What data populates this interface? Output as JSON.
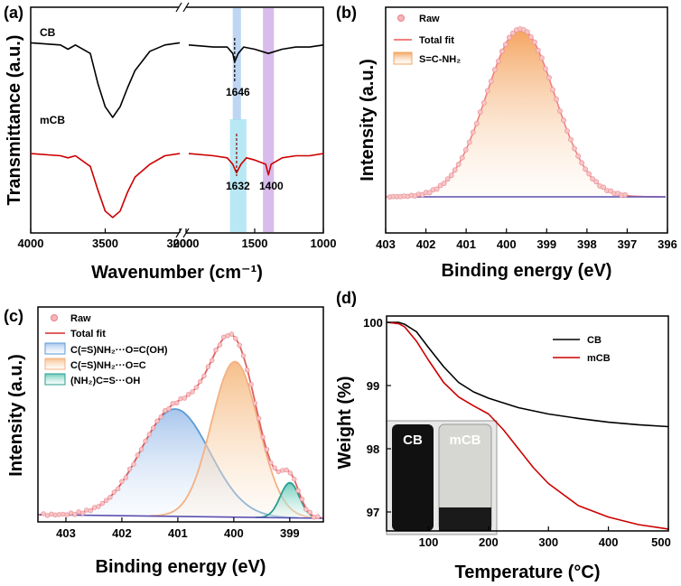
{
  "figure": {
    "panel_labels": [
      "(a)",
      "(b)",
      "(c)",
      "(d)"
    ]
  },
  "chart_data": [
    {
      "id": "a",
      "type": "line",
      "title": "",
      "xlabel": "Wavenumber (cm⁻¹)",
      "ylabel": "Transmittance (a.u.)",
      "xlim": [
        4000,
        1000
      ],
      "x_break": [
        3000,
        2000
      ],
      "xticks": [
        "4000",
        "3500",
        "3000",
        "2000",
        "1500",
        "1000"
      ],
      "series": [
        {
          "name": "CB",
          "color": "#000000",
          "x": [
            4000,
            3800,
            3750,
            3700,
            3600,
            3550,
            3500,
            3450,
            3400,
            3350,
            3300,
            3200,
            3100,
            3000,
            1980,
            1800,
            1700,
            1660,
            1646,
            1620,
            1580,
            1500,
            1400,
            1300,
            1200,
            1100,
            1000
          ],
          "y": [
            0.85,
            0.84,
            0.82,
            0.84,
            0.8,
            0.66,
            0.55,
            0.5,
            0.55,
            0.64,
            0.72,
            0.81,
            0.84,
            0.85,
            0.84,
            0.83,
            0.83,
            0.8,
            0.76,
            0.8,
            0.83,
            0.82,
            0.8,
            0.82,
            0.83,
            0.83,
            0.84
          ]
        },
        {
          "name": "mCB",
          "color": "#cc0000",
          "x": [
            4000,
            3800,
            3750,
            3700,
            3600,
            3550,
            3500,
            3450,
            3400,
            3350,
            3300,
            3200,
            3100,
            3000,
            1980,
            1800,
            1700,
            1660,
            1632,
            1600,
            1560,
            1500,
            1420,
            1400,
            1380,
            1300,
            1200,
            1100,
            1000
          ],
          "y": [
            0.33,
            0.32,
            0.31,
            0.32,
            0.27,
            0.16,
            0.06,
            0.03,
            0.06,
            0.15,
            0.22,
            0.28,
            0.32,
            0.33,
            0.33,
            0.32,
            0.31,
            0.28,
            0.24,
            0.28,
            0.31,
            0.3,
            0.28,
            0.23,
            0.28,
            0.31,
            0.32,
            0.32,
            0.33
          ]
        }
      ],
      "curve_labels": [
        "CB",
        "mCB"
      ],
      "annotations": [
        "1646",
        "1632",
        "1400"
      ],
      "bands": [
        {
          "from": 1660,
          "to": 1600,
          "color": "#a8c8ef"
        },
        {
          "from": 1680,
          "to": 1560,
          "color": "#9fe0f0"
        },
        {
          "from": 1440,
          "to": 1360,
          "color": "#c9a6e6"
        }
      ]
    },
    {
      "id": "b",
      "type": "scatter",
      "xlabel": "Binding energy (eV)",
      "ylabel": "Intensity (a.u.)",
      "xlim": [
        403,
        396
      ],
      "xticks": [
        "403",
        "402",
        "401",
        "400",
        "399",
        "398",
        "397",
        "396"
      ],
      "peak": {
        "center": 399.65,
        "height": 1.0,
        "sigma": 0.85
      },
      "baseline": 0.0,
      "legend": [
        "Raw",
        "Total fit",
        "S=C-NH₂"
      ]
    },
    {
      "id": "c",
      "type": "scatter",
      "xlabel": "Binding energy (eV)",
      "ylabel": "Intensity (a.u.)",
      "xlim": [
        403.5,
        398.4
      ],
      "xticks": [
        "403",
        "402",
        "401",
        "400",
        "399"
      ],
      "components": [
        {
          "name": "C(=S)NH₂···O=C(OH)",
          "center": 401.05,
          "height": 0.58,
          "sigma": 0.62,
          "color": "#5b9bd5",
          "fill": "#a9c8ee"
        },
        {
          "name": "C(=S)NH₂···O=C",
          "center": 399.98,
          "height": 0.84,
          "sigma": 0.42,
          "color": "#f4b183",
          "fill": "#f7c99c"
        },
        {
          "name": "(NH₂)C=S···OH",
          "center": 399.0,
          "height": 0.19,
          "sigma": 0.17,
          "color": "#2a9d8f",
          "fill": "#7fd1c2"
        }
      ],
      "legend": [
        "Raw",
        "Total fit",
        "C(=S)NH₂···O=C(OH)",
        "C(=S)NH₂···O=C",
        "(NH₂)C=S···OH"
      ]
    },
    {
      "id": "d",
      "type": "line",
      "xlabel": "Temperature (°C)",
      "ylabel": "Weight (%)",
      "xlim": [
        30,
        500
      ],
      "ylim": [
        96.7,
        100.1
      ],
      "xticks": [
        "100",
        "200",
        "300",
        "400",
        "500"
      ],
      "yticks": [
        "97",
        "98",
        "99",
        "100"
      ],
      "series": [
        {
          "name": "CB",
          "color": "#000000",
          "x": [
            30,
            50,
            60,
            80,
            100,
            125,
            150,
            175,
            200,
            250,
            300,
            350,
            400,
            450,
            500
          ],
          "y": [
            100.0,
            100.0,
            99.97,
            99.85,
            99.6,
            99.3,
            99.05,
            98.9,
            98.8,
            98.65,
            98.55,
            98.48,
            98.42,
            98.38,
            98.35
          ]
        },
        {
          "name": "mCB",
          "color": "#cc0000",
          "x": [
            30,
            50,
            60,
            80,
            100,
            125,
            150,
            175,
            200,
            225,
            250,
            275,
            300,
            350,
            400,
            450,
            500
          ],
          "y": [
            100.0,
            99.98,
            99.93,
            99.7,
            99.4,
            99.05,
            98.82,
            98.68,
            98.55,
            98.3,
            98.0,
            97.7,
            97.45,
            97.1,
            96.92,
            96.8,
            96.73
          ]
        }
      ],
      "legend": [
        "CB",
        "mCB"
      ],
      "inset_labels": [
        "CB",
        "mCB"
      ]
    }
  ]
}
